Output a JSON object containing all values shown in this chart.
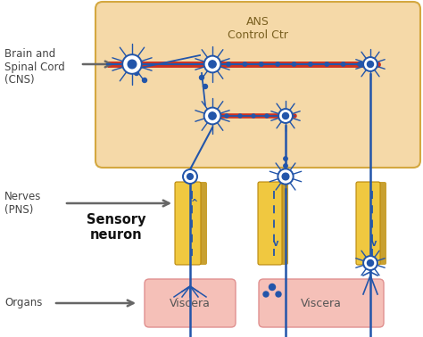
{
  "bg_color": "#ffffff",
  "ans_box_color": "#f5d9a8",
  "ans_box_edge": "#d4a840",
  "nerve_color": "#f0c840",
  "nerve_shadow": "#c8a030",
  "organ_color": "#f5c0b8",
  "organ_edge": "#e09090",
  "neuron_color": "#2255aa",
  "axon_color": "#2255aa",
  "red_axon_color": "#cc3322",
  "dashed_color": "#2255aa",
  "text_color": "#444444",
  "arrow_color": "#666666",
  "ans_label": "ANS\nControl Ctr",
  "brain_label": "Brain and\nSpinal Cord\n(CNS)",
  "nerves_label": "Nerves\n(PNS)",
  "organs_label": "Organs",
  "sensory_label": "Sensory\nneuron",
  "viscera_label": "Viscera"
}
